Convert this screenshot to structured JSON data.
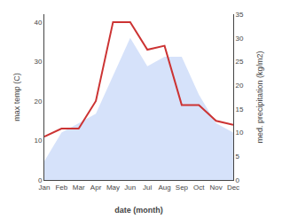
{
  "chart_data": {
    "type": "line",
    "categories": [
      "Jan",
      "Feb",
      "Mar",
      "Apr",
      "May",
      "Jun",
      "Jul",
      "Aug",
      "Sep",
      "Oct",
      "Nov",
      "Dec"
    ],
    "xlabel": "date (month)",
    "ylabel": "max temp (C)",
    "y2label": "med. precipitation (kg/m2)",
    "series": [
      {
        "type": "area",
        "axis": "y2",
        "color": "#c8d8f8",
        "values": [
          4,
          10,
          12,
          14,
          22,
          30,
          24,
          26,
          26,
          18,
          12,
          10
        ]
      },
      {
        "type": "line",
        "color": "#cc3333",
        "values": [
          11,
          13,
          13,
          20,
          40,
          40,
          33,
          34,
          19,
          19,
          15,
          14
        ]
      }
    ],
    "ylim": [
      0,
      42
    ],
    "yticks": [
      0,
      10,
      20,
      30,
      40
    ],
    "y2lim": [
      0,
      35
    ],
    "y2ticks": [
      0,
      5,
      10,
      15,
      20,
      25,
      30,
      35
    ],
    "grid": false
  }
}
